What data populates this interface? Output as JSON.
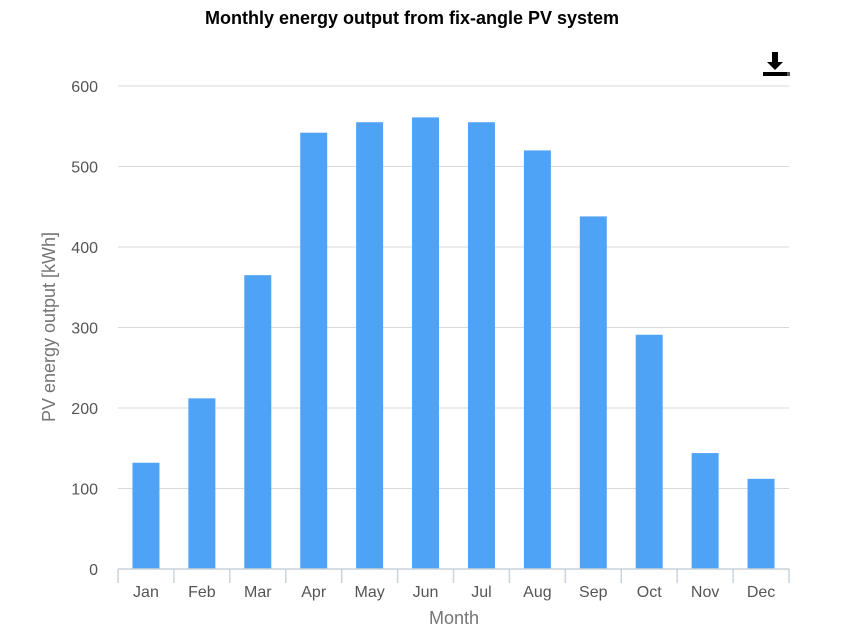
{
  "chart_data": {
    "type": "bar",
    "title": "Monthly energy output from fix-angle PV system",
    "xlabel": "Month",
    "ylabel": "PV energy output [kWh]",
    "categories": [
      "Jan",
      "Feb",
      "Mar",
      "Apr",
      "May",
      "Jun",
      "Jul",
      "Aug",
      "Sep",
      "Oct",
      "Nov",
      "Dec"
    ],
    "series": [
      {
        "values": [
          132,
          212,
          365,
          542,
          555,
          561,
          555,
          520,
          438,
          291,
          144,
          112
        ]
      }
    ],
    "ylim": [
      0,
      600
    ],
    "yticks": [
      0,
      100,
      200,
      300,
      400,
      500,
      600
    ],
    "grid": true,
    "legend": "none",
    "bar_color": "#4fa3f7"
  },
  "toolbar": {
    "download_icon": "download-icon"
  }
}
